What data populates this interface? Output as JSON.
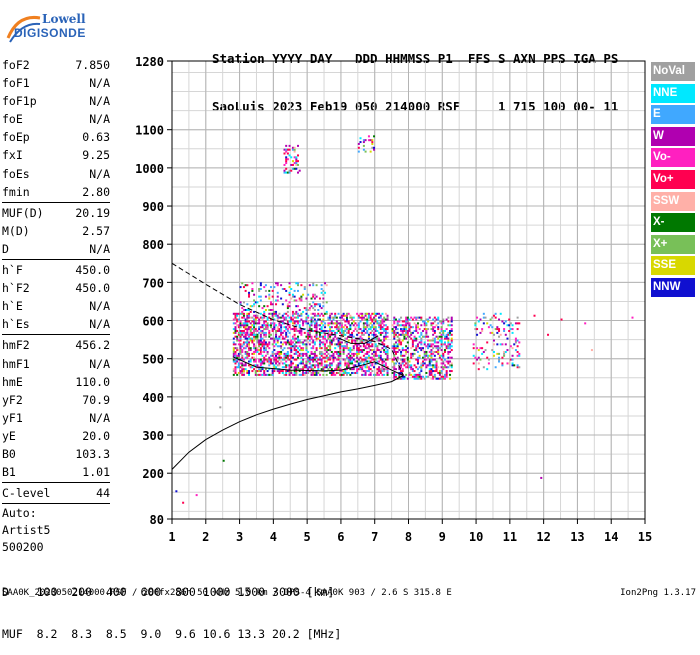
{
  "logo": {
    "line1": "Lowell",
    "line2": "DIGISONDE"
  },
  "header": {
    "line1": "Station YYYY DAY   DDD HHMMSS P1  FFS S AXN PPS IGA PS",
    "line2": "SaoLuis 2023 Feb19 050 214000 RSF     1 715 100 00- 11"
  },
  "params": [
    {
      "k": "foF2",
      "v": "7.850"
    },
    {
      "k": "foF1",
      "v": "N/A"
    },
    {
      "k": "foF1p",
      "v": "N/A"
    },
    {
      "k": "foE",
      "v": "N/A"
    },
    {
      "k": "foEp",
      "v": "0.63"
    },
    {
      "k": "fxI",
      "v": "9.25"
    },
    {
      "k": "foEs",
      "v": "N/A"
    },
    {
      "k": "fmin",
      "v": "2.80"
    }
  ],
  "params2": [
    {
      "k": "MUF(D)",
      "v": "20.19"
    },
    {
      "k": "M(D)",
      "v": "2.57"
    },
    {
      "k": "D",
      "v": "N/A"
    }
  ],
  "params3": [
    {
      "k": "h`F",
      "v": "450.0"
    },
    {
      "k": "h`F2",
      "v": "450.0"
    },
    {
      "k": "h`E",
      "v": "N/A"
    },
    {
      "k": "h`Es",
      "v": "N/A"
    }
  ],
  "params4": [
    {
      "k": "hmF2",
      "v": "456.2"
    },
    {
      "k": "hmF1",
      "v": "N/A"
    },
    {
      "k": "hmE",
      "v": "110.0"
    },
    {
      "k": "yF2",
      "v": "70.9"
    },
    {
      "k": "yF1",
      "v": "N/A"
    },
    {
      "k": "yE",
      "v": "20.0"
    },
    {
      "k": "B0",
      "v": "103.3"
    },
    {
      "k": "B1",
      "v": "1.01"
    }
  ],
  "clevel": {
    "k": "C-level",
    "v": "44"
  },
  "auto": [
    "Auto:",
    "Artist5",
    "500200"
  ],
  "legend": [
    {
      "label": "NoVal",
      "color": "#a0a0a0"
    },
    {
      "label": "NNE",
      "color": "#00e8ff"
    },
    {
      "label": "E",
      "color": "#40a8ff"
    },
    {
      "label": "W",
      "color": "#b000b0"
    },
    {
      "label": "Vo-",
      "color": "#ff20c0"
    },
    {
      "label": "Vo+",
      "color": "#ff0050"
    },
    {
      "label": "SSW",
      "color": "#ffb0a8"
    },
    {
      "label": "X-",
      "color": "#007800"
    },
    {
      "label": "X+",
      "color": "#78c058"
    },
    {
      "label": "SSE",
      "color": "#d8d800"
    },
    {
      "label": "NNW",
      "color": "#1010d0"
    }
  ],
  "chart_data": {
    "type": "scatter",
    "xlabel": "",
    "ylabel": "",
    "xlim": [
      1,
      15
    ],
    "ylim": [
      80,
      1280
    ],
    "xticks": [
      1,
      2,
      3,
      4,
      5,
      6,
      7,
      8,
      9,
      10,
      11,
      12,
      13,
      14,
      15
    ],
    "yticks": [
      80,
      200,
      300,
      400,
      500,
      600,
      700,
      800,
      900,
      1000,
      1100,
      1280
    ],
    "grid": true,
    "legend_position": "right",
    "echo_clusters": [
      {
        "fmin": 2.8,
        "fmax": 7.4,
        "hmin": 455,
        "hmax": 620,
        "density": 0.55
      },
      {
        "fmin": 7.5,
        "fmax": 9.3,
        "hmin": 445,
        "hmax": 610,
        "density": 0.45
      },
      {
        "fmin": 9.9,
        "fmax": 11.3,
        "hmin": 470,
        "hmax": 620,
        "density": 0.15
      },
      {
        "fmin": 3.0,
        "fmax": 5.6,
        "hmin": 620,
        "hmax": 700,
        "density": 0.2
      },
      {
        "fmin": 4.3,
        "fmax": 4.8,
        "hmin": 985,
        "hmax": 1060,
        "density": 0.3
      },
      {
        "fmin": 6.5,
        "fmax": 7.0,
        "hmin": 1040,
        "hmax": 1085,
        "density": 0.3
      }
    ],
    "profile_solid": [
      [
        1.0,
        210
      ],
      [
        1.5,
        255
      ],
      [
        2.0,
        288
      ],
      [
        2.5,
        313
      ],
      [
        3.0,
        335
      ],
      [
        3.5,
        353
      ],
      [
        4.0,
        368
      ],
      [
        4.5,
        381
      ],
      [
        5.0,
        393
      ],
      [
        5.5,
        403
      ],
      [
        6.0,
        413
      ],
      [
        6.5,
        421
      ],
      [
        7.0,
        430
      ],
      [
        7.5,
        440
      ],
      [
        7.85,
        456
      ]
    ],
    "profile_dashed": [
      [
        1.0,
        750
      ],
      [
        2.0,
        695
      ],
      [
        3.0,
        642
      ],
      [
        4.0,
        602
      ],
      [
        5.0,
        575
      ],
      [
        6.0,
        560
      ],
      [
        7.0,
        545
      ],
      [
        7.5,
        525
      ],
      [
        7.85,
        456
      ]
    ],
    "trace_o": [
      [
        2.8,
        505
      ],
      [
        3.5,
        478
      ],
      [
        4.5,
        470
      ],
      [
        5.5,
        468
      ],
      [
        6.0,
        470
      ],
      [
        6.5,
        480
      ],
      [
        7.0,
        492
      ],
      [
        7.5,
        470
      ],
      [
        7.85,
        456
      ]
    ],
    "trace_o_hump": [
      [
        5.9,
        555
      ],
      [
        6.3,
        540
      ],
      [
        6.7,
        540
      ],
      [
        7.1,
        560
      ]
    ]
  },
  "footer": {
    "line1": "D    100  200  400  600  800 1000 1500 3000 [km]",
    "line2": "MUF  8.2  8.3  8.5  9.0  9.6 10.6 13.3 20.2 [MHz]"
  },
  "bottomline": "SAA0K_2023050214000.RSF / 200fx256h 50 kHz 5.0 km / DPS-4 SAA0K 903 / 2.6 S 315.8 E",
  "version": "Ion2Png 1.3.17"
}
